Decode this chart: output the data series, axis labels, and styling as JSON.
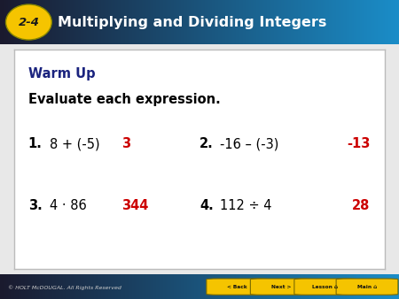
{
  "header_bg_left": "#1A1A2E",
  "header_bg_right": "#1B8DC8",
  "header_text_color": "#FFFFFF",
  "header_badge_bg": "#F5C400",
  "header_badge_text_color": "#1A1A1A",
  "header_badge_label": "2-4",
  "header_title": "Multiplying and Dividing Integers",
  "body_bg_color": "#E8E8E8",
  "card_bg_color": "#FFFFFF",
  "card_border_color": "#BBBBBB",
  "warm_up_color": "#1A237E",
  "warm_up_text": "Warm Up",
  "subtitle_text": "Evaluate each expression.",
  "subtitle_color": "#000000",
  "problem_color": "#000000",
  "answer_color": "#CC0000",
  "problems": [
    {
      "num": "1.",
      "expr": "8 + (-5)",
      "answer": "3"
    },
    {
      "num": "2.",
      "expr": "-16 – (-3)",
      "answer": "-13"
    },
    {
      "num": "3.",
      "expr": "4 · 86",
      "answer": "344"
    },
    {
      "num": "4.",
      "expr": "112 ÷ 4",
      "answer": "28"
    }
  ],
  "footer_text": "© HOLT McDOUGAL. All Rights Reserved",
  "footer_text_color": "#CCCCCC",
  "footer_btn_bg": "#F5C400",
  "footer_btn_labels": [
    "< Back",
    "Next >",
    "Lesson",
    "Main"
  ]
}
